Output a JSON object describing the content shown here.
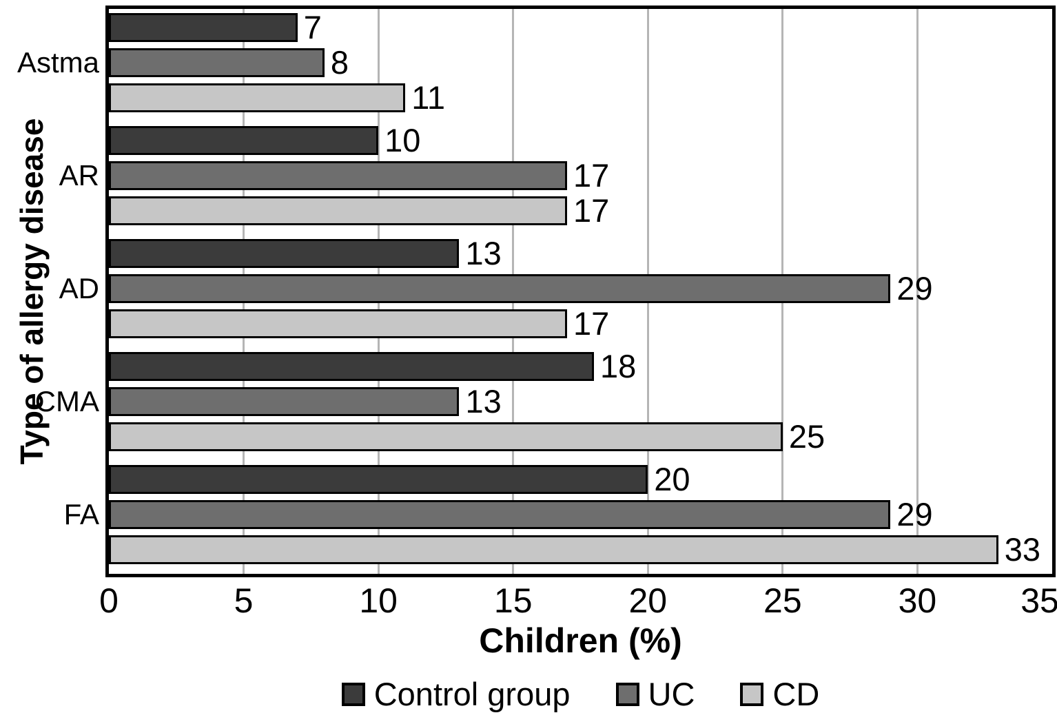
{
  "chart_data": {
    "type": "bar",
    "orientation": "horizontal",
    "xlabel": "Children (%)",
    "ylabel": "Type of allergy disease",
    "xlim": [
      0,
      35
    ],
    "xticks": [
      "0",
      "5",
      "10",
      "15",
      "20",
      "25",
      "30",
      "35"
    ],
    "grid": "vertical",
    "legend_position": "bottom",
    "value_labels_shown": true,
    "categories": [
      "Astma",
      "AR",
      "AD",
      "CMA",
      "FA"
    ],
    "series": [
      {
        "name": "Control group",
        "color": "#3b3b3b",
        "values": [
          7,
          10,
          13,
          18,
          20
        ]
      },
      {
        "name": "UC",
        "color": "#6e6e6e",
        "values": [
          8,
          17,
          29,
          13,
          29
        ]
      },
      {
        "name": "CD",
        "color": "#c6c6c6",
        "values": [
          11,
          17,
          17,
          25,
          33
        ]
      }
    ]
  },
  "style": {
    "frame_color": "#000000",
    "gridline_color": "#b5b5b5",
    "text_color": "#000000",
    "background": "#ffffff"
  }
}
